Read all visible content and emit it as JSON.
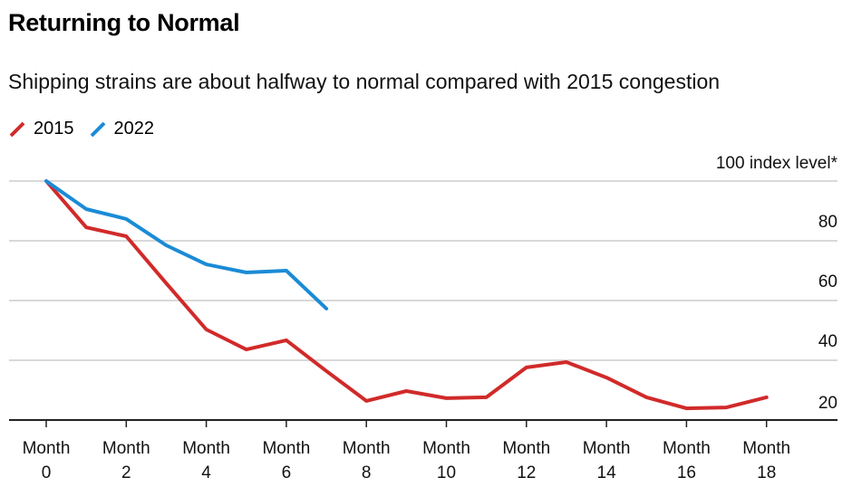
{
  "chart_data": {
    "type": "line",
    "title": "Returning to Normal",
    "subtitle": "Shipping strains are about halfway to normal compared with 2015 congestion",
    "xlabel": "",
    "ylabel": "index level*",
    "y_unit_label": "100 index level*",
    "ylim": [
      20,
      100
    ],
    "yticks": [
      100,
      80,
      60,
      40,
      20
    ],
    "ytick_labels": [
      "100 index level*",
      "80",
      "60",
      "40",
      "20"
    ],
    "xlim": [
      0,
      19
    ],
    "xticks": [
      0,
      2,
      4,
      6,
      8,
      10,
      12,
      14,
      16,
      18
    ],
    "xtick_labels": [
      [
        "Month",
        "0"
      ],
      [
        "Month",
        "2"
      ],
      [
        "Month",
        "4"
      ],
      [
        "Month",
        "6"
      ],
      [
        "Month",
        "8"
      ],
      [
        "Month",
        "10"
      ],
      [
        "Month",
        "12"
      ],
      [
        "Month",
        "14"
      ],
      [
        "Month",
        "16"
      ],
      [
        "Month",
        "18"
      ]
    ],
    "grid": true,
    "legend_position": "top-left",
    "series": [
      {
        "name": "2015",
        "color": "#d12a2a",
        "x": [
          0,
          1,
          2,
          3,
          4,
          5,
          6,
          7,
          8,
          9,
          10,
          11,
          12,
          13,
          14,
          15,
          16,
          17,
          18
        ],
        "values": [
          100,
          84.5,
          81.5,
          65.8,
          50.3,
          43.6,
          46.7,
          36.4,
          26.4,
          29.7,
          27.3,
          27.6,
          37.6,
          39.4,
          34.2,
          27.6,
          23.9,
          24.2,
          27.6
        ]
      },
      {
        "name": "2022",
        "color": "#1a8bd6",
        "x": [
          0,
          1,
          2,
          3,
          4,
          5,
          6,
          7
        ],
        "values": [
          100,
          90.6,
          87.3,
          78.5,
          72.1,
          69.4,
          70.0,
          57.3
        ]
      }
    ]
  }
}
